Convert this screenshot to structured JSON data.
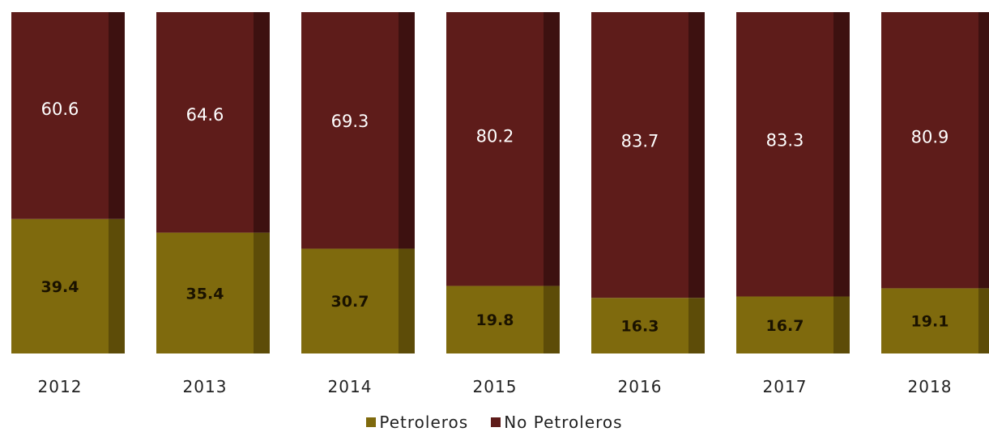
{
  "chart_data": {
    "type": "bar",
    "stacked": true,
    "percent": true,
    "categories": [
      "2012",
      "2013",
      "2014",
      "2015",
      "2016",
      "2017",
      "2018"
    ],
    "series": [
      {
        "name": "Petroleros",
        "color": "#7f6a0d",
        "values": [
          39.4,
          35.4,
          30.7,
          19.8,
          16.3,
          16.7,
          19.1
        ],
        "labels": [
          "39.4",
          "35.4",
          "30.7",
          "19.8",
          "16.3",
          "16.7",
          "19.1"
        ]
      },
      {
        "name": "No Petroleros",
        "color": "#5e1c1a",
        "values": [
          60.6,
          64.6,
          69.3,
          80.2,
          83.7,
          83.3,
          80.9
        ],
        "labels": [
          "60.6",
          "64.6",
          "69.3",
          "80.2",
          "83.7",
          "83.3",
          "80.9"
        ]
      }
    ],
    "ylim": [
      0,
      100
    ],
    "grid": false,
    "legend_position": "bottom"
  }
}
